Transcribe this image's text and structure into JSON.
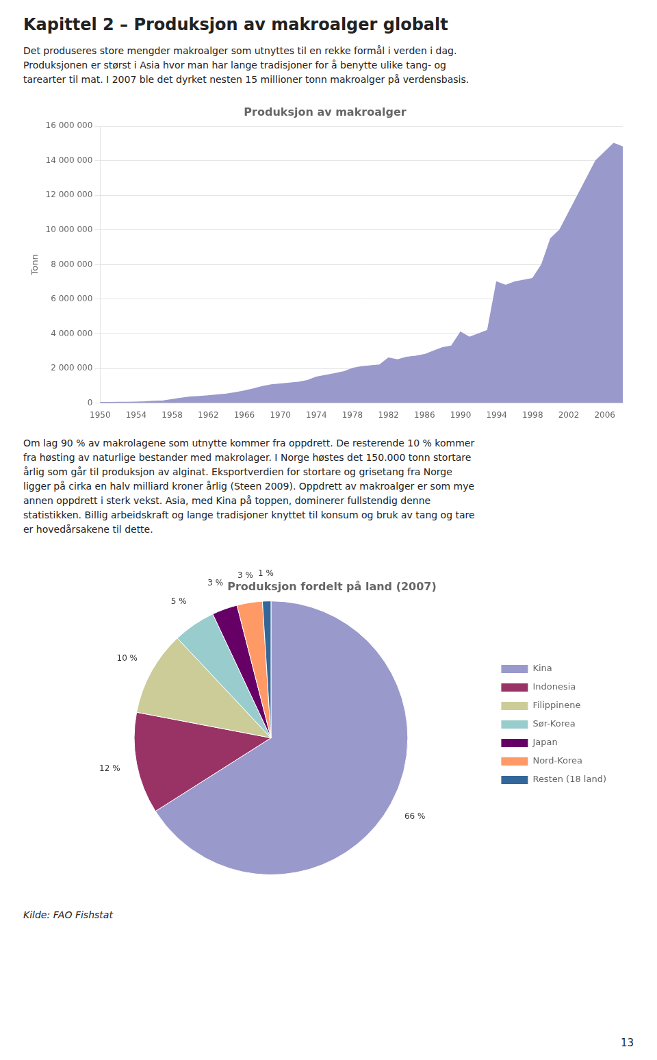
{
  "title": "Kapittel 2 – Produksjon av makroalger globalt",
  "annotations": [
    "Det produseres store mengder makroalger som utnyttes til en rekke formål i verden i dag.\nProduksjonen er størst i Asia hvor man har lange tradisjoner for å benytte ulike tang- og\ntarearter til mat. I 2007 ble det dyrket nesten 15 millioner tonn makroalger på verdensbasis.",
    "Om lag 90 % av makrolagene som utnytte kommer fra oppdrett. De resterende 10 % kommer\nfra høsting av naturlige bestander med makrolager. I Norge høstes det 150.000 tonn stortare\nårlig som går til produksjon av alginat. Eksportverdien for stortare og grisetang fra Norge\nligger på cirka en halv milliard kroner årlig (Steen 2009). Oppdrett av makroalger er som mye\nannen oppdrett i sterk vekst. Asia, med Kina på toppen, dominerer fullstendig denne\nstatistikken. Billig arbeidskraft og lange tradisjoner knyttet til konsum og bruk av tang og tare\ner hovedårsakene til dette.",
    "Kilde: FAO Fishstat",
    "13"
  ],
  "chart_data": [
    {
      "type": "area",
      "title": "Produksjon av makroalger",
      "ylabel": "Tonn",
      "x": [
        1950,
        1951,
        1952,
        1953,
        1954,
        1955,
        1956,
        1957,
        1958,
        1959,
        1960,
        1961,
        1962,
        1963,
        1964,
        1965,
        1966,
        1967,
        1968,
        1969,
        1970,
        1971,
        1972,
        1973,
        1974,
        1975,
        1976,
        1977,
        1978,
        1979,
        1980,
        1981,
        1982,
        1983,
        1984,
        1985,
        1986,
        1987,
        1988,
        1989,
        1990,
        1991,
        1992,
        1993,
        1994,
        1995,
        1996,
        1997,
        1998,
        1999,
        2000,
        2001,
        2002,
        2003,
        2004,
        2005,
        2006,
        2007,
        2008
      ],
      "values": [
        30000,
        35000,
        40000,
        45000,
        55000,
        70000,
        100000,
        120000,
        200000,
        280000,
        350000,
        380000,
        420000,
        470000,
        520000,
        600000,
        700000,
        820000,
        950000,
        1050000,
        1100000,
        1150000,
        1200000,
        1300000,
        1500000,
        1600000,
        1700000,
        1800000,
        2000000,
        2100000,
        2150000,
        2200000,
        2600000,
        2500000,
        2650000,
        2700000,
        2800000,
        3000000,
        3200000,
        3300000,
        4100000,
        3800000,
        4000000,
        4200000,
        7000000,
        6800000,
        7000000,
        7100000,
        7200000,
        8000000,
        9500000,
        10000000,
        11000000,
        12000000,
        13000000,
        14000000,
        14500000,
        15000000,
        14800000
      ],
      "color": "#9999cc",
      "xlim": [
        1950,
        2008
      ],
      "xticks": [
        1950,
        1954,
        1958,
        1962,
        1966,
        1970,
        1974,
        1978,
        1982,
        1986,
        1990,
        1994,
        1998,
        2002,
        2006
      ],
      "ylim": [
        0,
        16000000
      ],
      "yticks": [
        0,
        {
          "value": 2000000,
          "label": "2 000 000"
        },
        {
          "value": 4000000,
          "label": "4 000 000"
        },
        {
          "value": 6000000,
          "label": "6 000 000"
        },
        {
          "value": 8000000,
          "label": "8 000 000"
        },
        {
          "value": 10000000,
          "label": "10 000 000"
        },
        {
          "value": 12000000,
          "label": "12 000 000"
        },
        {
          "value": 14000000,
          "label": "14 000 000"
        },
        {
          "value": 16000000,
          "label": "16 000 000"
        }
      ],
      "grid": "y"
    },
    {
      "type": "pie",
      "title": "Produksjon fordelt på land (2007)",
      "categories": [
        "Kina",
        "Indonesia",
        "Filippinene",
        "Sør-Korea",
        "Japan",
        "Nord-Korea",
        "Resten (18 land)"
      ],
      "values": [
        66,
        12,
        10,
        5,
        3,
        3,
        1
      ],
      "colors": [
        "#9999cc",
        "#993366",
        "#cccc99",
        "#99cccc",
        "#660066",
        "#ff9966",
        "#336699"
      ],
      "data_labels": true,
      "value_labels": [
        "66 %",
        "12 %",
        "10 %",
        "5 %",
        "3 %",
        "3 %",
        "1 %"
      ],
      "legend": "right"
    }
  ]
}
